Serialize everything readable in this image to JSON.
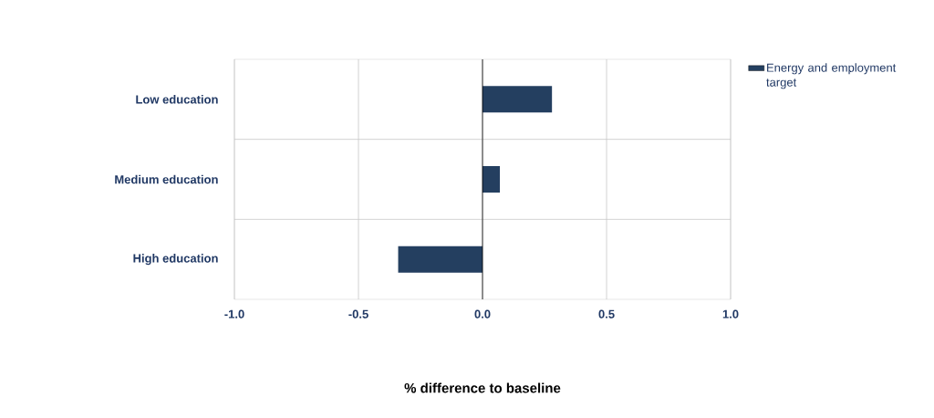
{
  "chart_data": {
    "type": "bar",
    "orientation": "horizontal",
    "xlabel": "% difference to baseline",
    "categories": [
      "Low education",
      "Medium education",
      "High education"
    ],
    "series": [
      {
        "name": "Energy and employment target",
        "color": "#243f60",
        "values": [
          0.28,
          0.07,
          -0.34
        ]
      }
    ],
    "xlim": [
      -1.0,
      1.0
    ],
    "xticks": [
      {
        "value": -1.0,
        "label": "-1.0"
      },
      {
        "value": -0.5,
        "label": "-0.5"
      },
      {
        "value": 0.0,
        "label": "0.0"
      },
      {
        "value": 0.5,
        "label": "0.5"
      },
      {
        "value": 1.0,
        "label": "1.0"
      }
    ],
    "grid": true,
    "legend": "right"
  }
}
